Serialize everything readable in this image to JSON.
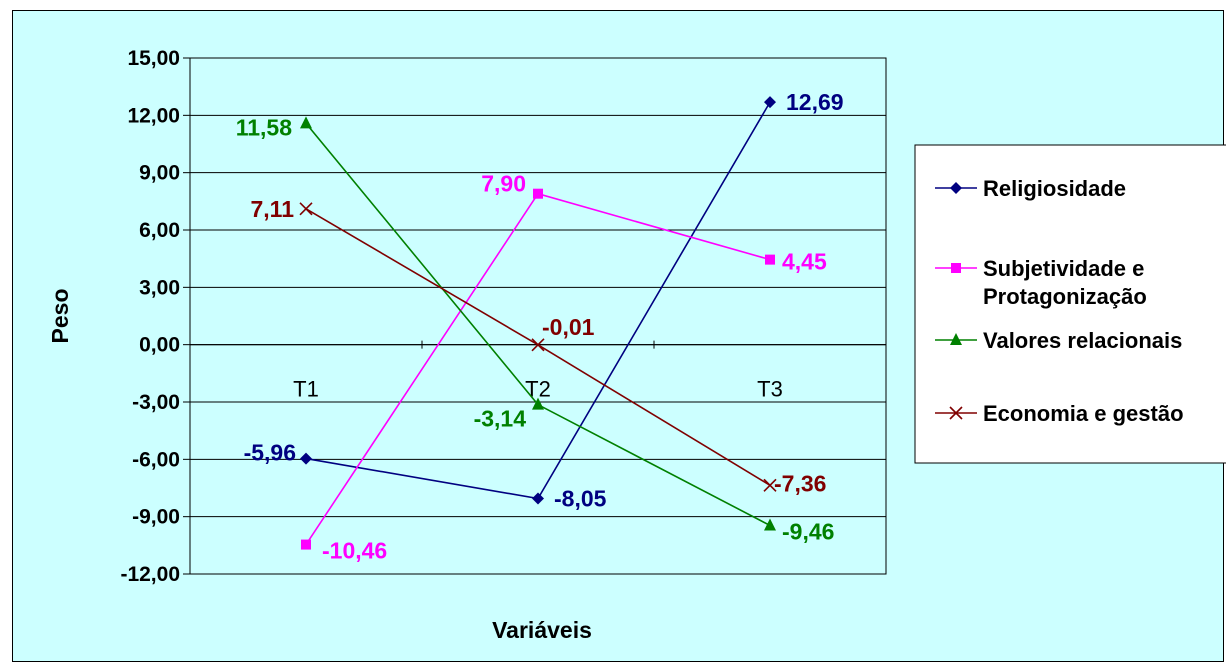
{
  "chart_data": {
    "type": "line",
    "categories": [
      "T1",
      "T2",
      "T3"
    ],
    "xlabel": "Variáveis",
    "ylabel": "Peso",
    "ylim": [
      -12,
      15
    ],
    "yticks": [
      "15,00",
      "12,00",
      "9,00",
      "6,00",
      "3,00",
      "0,00",
      "-3,00",
      "-6,00",
      "-9,00",
      "-12,00"
    ],
    "ytick_values": [
      15,
      12,
      9,
      6,
      3,
      0,
      -3,
      -6,
      -9,
      -12
    ],
    "grid": true,
    "legend": "right",
    "series": [
      {
        "name": "Religiosidade",
        "color": "#000080",
        "marker": "diamond",
        "values": [
          -5.96,
          -8.05,
          12.69
        ],
        "labels": [
          "-5,96",
          "-8,05",
          "12,69"
        ]
      },
      {
        "name": "Subjetividade e Protagonização",
        "legend_lines": [
          "Subjetividade e",
          "Protagonização"
        ],
        "color": "#ff00ff",
        "marker": "square",
        "values": [
          -10.46,
          7.9,
          4.45
        ],
        "labels": [
          "-10,46",
          "7,90",
          "4,45"
        ]
      },
      {
        "name": "Valores relacionais",
        "color": "#008000",
        "marker": "triangle",
        "values": [
          11.58,
          -3.14,
          -9.46
        ],
        "labels": [
          "11,58",
          "-3,14",
          "-9,46"
        ]
      },
      {
        "name": "Economia e gestão",
        "color": "#800000",
        "marker": "x",
        "values": [
          7.11,
          -0.01,
          -7.36
        ],
        "labels": [
          "7,11",
          "-0,01",
          "-7,36"
        ]
      }
    ]
  }
}
